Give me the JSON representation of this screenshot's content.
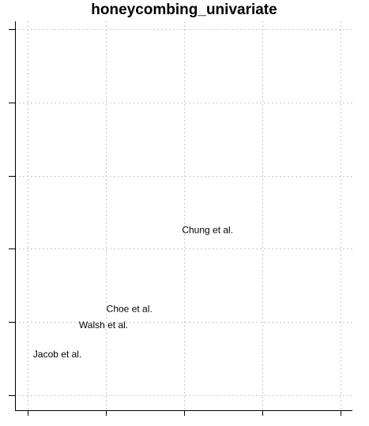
{
  "chart_data": {
    "type": "scatter",
    "title": "honeycombing_univariate",
    "xlabel": "",
    "ylabel": "",
    "xlim": [
      0,
      4
    ],
    "ylim": [
      0,
      5
    ],
    "x_ticks": [
      0,
      1,
      2,
      3,
      4
    ],
    "y_ticks": [
      0,
      1,
      2,
      3,
      4,
      5
    ],
    "tick_labels_shown": false,
    "grid": true,
    "points": [
      {
        "label": "Chung et al.",
        "x": 2.3,
        "y": 2.25
      },
      {
        "label": "Choe et al.",
        "x": 1.3,
        "y": 1.17
      },
      {
        "label": "Walsh et al.",
        "x": 0.97,
        "y": 0.95
      },
      {
        "label": "Jacob et al.",
        "x": 0.38,
        "y": 0.55
      }
    ]
  }
}
